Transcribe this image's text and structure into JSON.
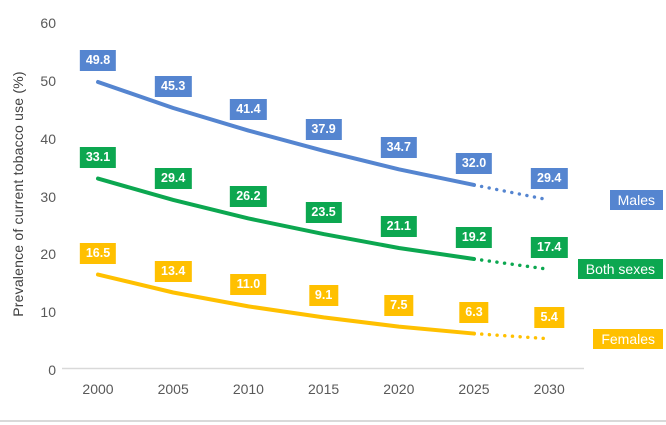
{
  "chart_data": {
    "type": "line",
    "title": "",
    "xlabel": "",
    "ylabel": "Prevalence of current tobacco use (%)",
    "x": [
      2000,
      2005,
      2010,
      2015,
      2020,
      2025,
      2030
    ],
    "yticks": [
      0,
      10,
      20,
      30,
      40,
      50,
      60
    ],
    "ylim": [
      0,
      60
    ],
    "grid": false,
    "legend_position": "right-of-last-point",
    "projection_dotted_from_x": 2025,
    "value_label_decimals": 1,
    "series": [
      {
        "name": "Males",
        "color": "#5585D0",
        "values": [
          49.8,
          45.3,
          41.4,
          37.9,
          34.7,
          32.0,
          29.4
        ]
      },
      {
        "name": "Both sexes",
        "color": "#0CA750",
        "values": [
          33.1,
          29.4,
          26.2,
          23.5,
          21.1,
          19.2,
          17.4
        ]
      },
      {
        "name": "Females",
        "color": "#FFC000",
        "values": [
          16.5,
          13.4,
          11.0,
          9.1,
          7.5,
          6.3,
          5.4
        ]
      }
    ]
  },
  "colors": {
    "axis_line": "#d9d9d9",
    "tick_label": "#595959",
    "axis_title": "#404040",
    "data_label_text": "#ffffff",
    "bottom_divider": "#d9d9d9"
  }
}
